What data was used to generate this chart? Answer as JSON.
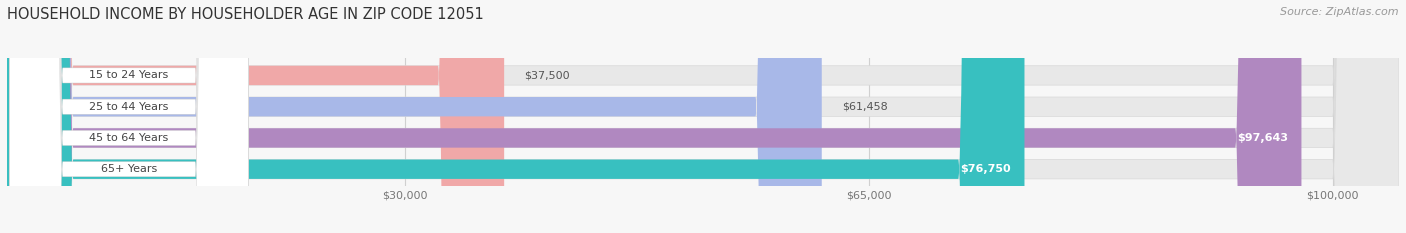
{
  "title": "HOUSEHOLD INCOME BY HOUSEHOLDER AGE IN ZIP CODE 12051",
  "source_text": "Source: ZipAtlas.com",
  "categories": [
    "15 to 24 Years",
    "25 to 44 Years",
    "45 to 64 Years",
    "65+ Years"
  ],
  "values": [
    37500,
    61458,
    97643,
    76750
  ],
  "bar_colors": [
    "#f0a8a8",
    "#a8b8e8",
    "#b088c0",
    "#38c0c0"
  ],
  "bar_labels": [
    "$37,500",
    "$61,458",
    "$97,643",
    "$76,750"
  ],
  "x_ticks": [
    30000,
    65000,
    100000
  ],
  "x_tick_labels": [
    "$30,000",
    "$65,000",
    "$100,000"
  ],
  "xmin": 0,
  "xmax": 105000,
  "background_color": "#f7f7f7",
  "bar_background_color": "#e8e8e8",
  "bar_bg_border_color": "#d8d8d8",
  "title_fontsize": 10.5,
  "source_fontsize": 8,
  "bar_height": 0.62,
  "label_inside_threshold": 70000,
  "label_pill_color": "#ffffff",
  "grid_color": "#d0d0d0",
  "tick_label_color": "#777777"
}
